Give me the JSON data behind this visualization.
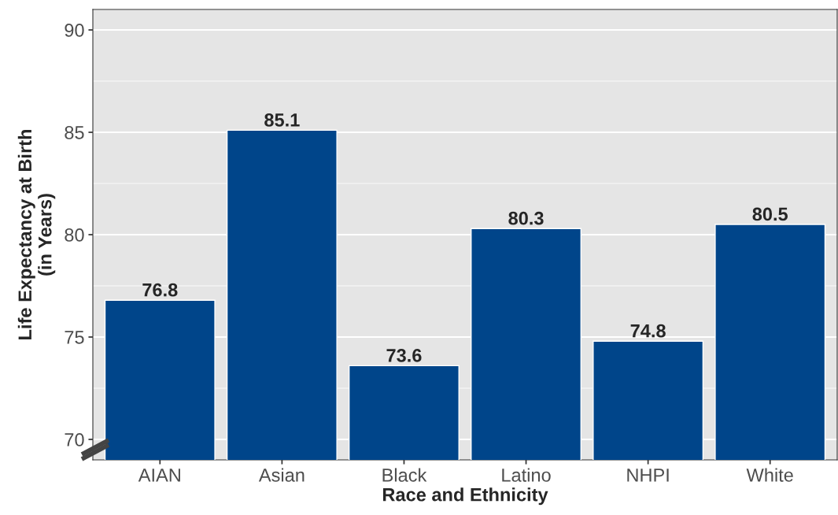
{
  "chart_data": {
    "type": "bar",
    "xlabel": "Race and Ethnicity",
    "ylabel": "Life Expectancy at Birth\n(in Years)",
    "categories": [
      "AIAN",
      "Asian",
      "Black",
      "Latino",
      "NHPI",
      "White"
    ],
    "values": [
      76.8,
      85.1,
      73.6,
      80.3,
      74.8,
      80.5
    ],
    "color": "#00458a",
    "ylim": [
      69,
      91
    ],
    "yticks": [
      70,
      75,
      80,
      85,
      90
    ],
    "grid": "y",
    "data_labels": true
  }
}
